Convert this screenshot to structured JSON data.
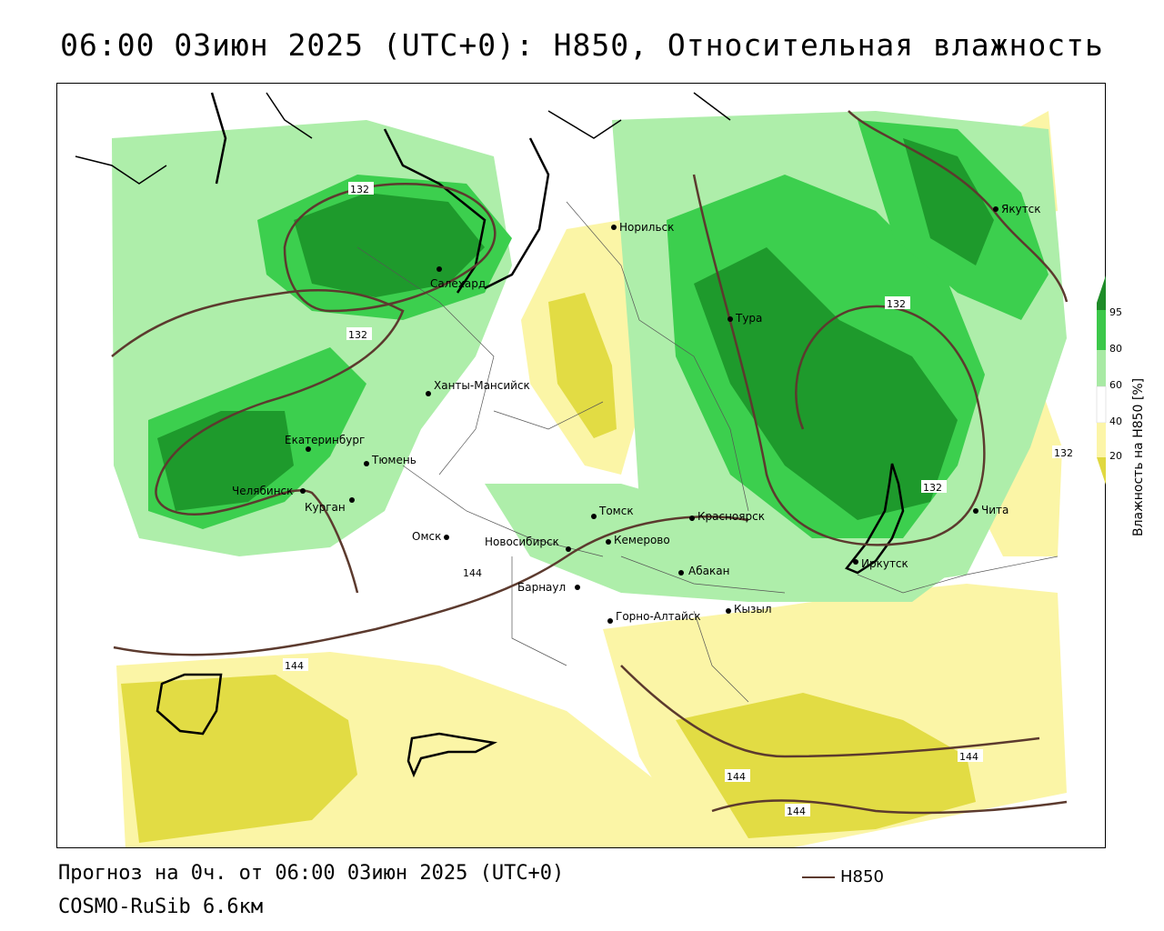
{
  "title": "06:00 03июн 2025 (UTC+0): H850, Относительная влажность",
  "footer": {
    "forecast": "Прогноз на 0ч. от 06:00 03июн 2025 (UTC+0)",
    "model": "COSMO-RuSib 6.6км",
    "line_legend": "H850"
  },
  "legend": {
    "axis_label": "Влажность на H850 [%]",
    "ticks": [
      "95",
      "80",
      "60",
      "40",
      "20"
    ],
    "colors": {
      "95": "#1e8c28",
      "80": "#3cc84a",
      "60": "#a8eaa4",
      "40": "#ffffff",
      "20": "#fcf5a8",
      "low": "#e0d840"
    }
  },
  "colors": {
    "contour": "#5c3a2e",
    "dark_green": "#1e9a2c",
    "mid_green": "#3ccf4e",
    "light_green": "#aeeeaa",
    "light_yellow": "#fbf5a6",
    "dark_yellow": "#e2dc44"
  },
  "cities": [
    {
      "name": "Норильск",
      "id": "norilsk"
    },
    {
      "name": "Якутск",
      "id": "yakutsk"
    },
    {
      "name": "Салехард",
      "id": "salekhard"
    },
    {
      "name": "Тура",
      "id": "tura"
    },
    {
      "name": "Ханты-Мансийск",
      "id": "khanty"
    },
    {
      "name": "Екатеринбург",
      "id": "ekb"
    },
    {
      "name": "Тюмень",
      "id": "tyumen"
    },
    {
      "name": "Челябинск",
      "id": "chelyabinsk"
    },
    {
      "name": "Курган",
      "id": "kurgan"
    },
    {
      "name": "Омск",
      "id": "omsk"
    },
    {
      "name": "Томск",
      "id": "tomsk"
    },
    {
      "name": "Красноярск",
      "id": "krasnoyarsk"
    },
    {
      "name": "Новосибирск",
      "id": "novosibirsk"
    },
    {
      "name": "Кемерово",
      "id": "kemerovo"
    },
    {
      "name": "Абакан",
      "id": "abakan"
    },
    {
      "name": "Иркутск",
      "id": "irkutsk"
    },
    {
      "name": "Чита",
      "id": "chita"
    },
    {
      "name": "Барнаул",
      "id": "barnaul"
    },
    {
      "name": "Горно-Алтайск",
      "id": "gorno"
    },
    {
      "name": "Кызыл",
      "id": "kyzyl"
    }
  ],
  "contour_labels": [
    "132",
    "132",
    "132",
    "132",
    "132",
    "144",
    "144",
    "144",
    "144",
    "144"
  ]
}
